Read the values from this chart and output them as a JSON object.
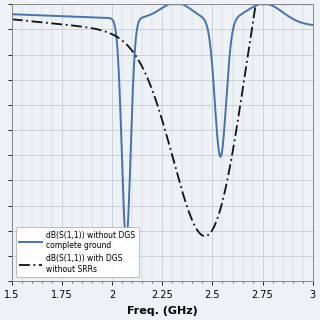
{
  "xlim": [
    1.5,
    3.0
  ],
  "ylim": [
    -55,
    0
  ],
  "xlabel": "Freq. (GHz)",
  "legend1": "dB(S(1,1)) without DGS\ncomplete ground",
  "legend2": "dB(S(1,1)) with DGS\nwithout SRRs",
  "grid_color": "#c0c8d0",
  "line1_color": "#4a72a8",
  "line2_color": "#111111",
  "bg_color": "#eef2f6"
}
